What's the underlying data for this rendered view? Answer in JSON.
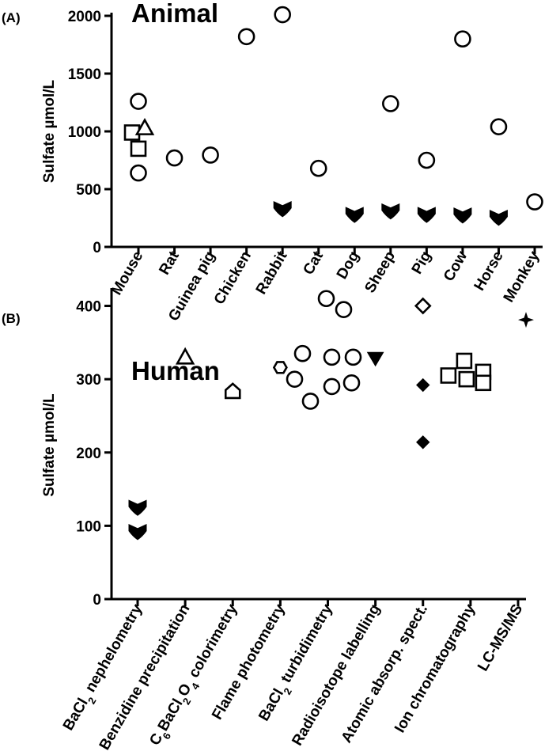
{
  "chart_data": [
    {
      "panel": "(A)",
      "type": "scatter",
      "title": "Animal",
      "ylabel": "Sulfate µmol/L",
      "ylim": [
        0,
        2000
      ],
      "yticks": [
        0,
        500,
        1000,
        1500,
        2000
      ],
      "categories": [
        "Mouse",
        "Rat",
        "Guinea pig",
        "Chicken",
        "Rabbit",
        "Cat",
        "Dog",
        "Sheep",
        "Pig",
        "Cow",
        "Horse",
        "Monkey"
      ],
      "points": [
        {
          "cat": 0,
          "dx": 0,
          "y": 1260,
          "marker": "circle"
        },
        {
          "cat": 0,
          "dx": 0,
          "y": 640,
          "marker": "circle"
        },
        {
          "cat": 0,
          "dx": -8,
          "y": 990,
          "marker": "square"
        },
        {
          "cat": 0,
          "dx": 0,
          "y": 850,
          "marker": "square"
        },
        {
          "cat": 0,
          "dx": 8,
          "y": 1030,
          "marker": "triangle"
        },
        {
          "cat": 1,
          "dx": 0,
          "y": 770,
          "marker": "circle"
        },
        {
          "cat": 2,
          "dx": 0,
          "y": 795,
          "marker": "circle"
        },
        {
          "cat": 3,
          "dx": 0,
          "y": 1820,
          "marker": "circle"
        },
        {
          "cat": 4,
          "dx": 0,
          "y": 2010,
          "marker": "circle"
        },
        {
          "cat": 4,
          "dx": 0,
          "y": 330,
          "marker": "heart"
        },
        {
          "cat": 5,
          "dx": 0,
          "y": 680,
          "marker": "circle"
        },
        {
          "cat": 6,
          "dx": 0,
          "y": 280,
          "marker": "heart"
        },
        {
          "cat": 7,
          "dx": 0,
          "y": 1240,
          "marker": "circle"
        },
        {
          "cat": 7,
          "dx": 0,
          "y": 310,
          "marker": "heart"
        },
        {
          "cat": 8,
          "dx": 0,
          "y": 750,
          "marker": "circle"
        },
        {
          "cat": 8,
          "dx": 0,
          "y": 280,
          "marker": "heart"
        },
        {
          "cat": 9,
          "dx": 0,
          "y": 1800,
          "marker": "circle"
        },
        {
          "cat": 9,
          "dx": 0,
          "y": 275,
          "marker": "heart"
        },
        {
          "cat": 10,
          "dx": 0,
          "y": 1040,
          "marker": "circle"
        },
        {
          "cat": 10,
          "dx": 0,
          "y": 255,
          "marker": "heart"
        },
        {
          "cat": 11,
          "dx": 0,
          "y": 390,
          "marker": "circle"
        }
      ]
    },
    {
      "panel": "(B)",
      "type": "scatter",
      "title": "Human",
      "ylabel": "Sulfate µmol/L",
      "ylim": [
        0,
        420
      ],
      "yticks": [
        0,
        100,
        200,
        300,
        400
      ],
      "categories": [
        {
          "main": "BaCl",
          "sub": "2",
          "rest": " nephelometry"
        },
        {
          "main": "Benzidine precipitation"
        },
        {
          "pre": "C",
          "presub": "6",
          "main": "BaCl",
          "sub": "2",
          "main2": "O",
          "sub2": "4",
          "rest": " colorimetry"
        },
        {
          "main": "Flame photometry"
        },
        {
          "main": "BaCl",
          "sub": "2",
          "rest": " turbidimetry"
        },
        {
          "main": "Radioisotope labelling"
        },
        {
          "main": "Atomic absorp. spect."
        },
        {
          "main": "Ion chromatography"
        },
        {
          "main": "LC-MS/MS"
        }
      ],
      "points": [
        {
          "cat": 0,
          "dx": 0,
          "y": 125,
          "marker": "heart"
        },
        {
          "cat": 0,
          "dx": 0,
          "y": 92,
          "marker": "heart"
        },
        {
          "cat": 1,
          "dx": 0,
          "y": 330,
          "marker": "triangle"
        },
        {
          "cat": 2,
          "dx": 0,
          "y": 283,
          "marker": "pentagon"
        },
        {
          "cat": 3,
          "dx": 0,
          "y": 316,
          "marker": "hexagon"
        },
        {
          "cat": 4,
          "dx": -2,
          "y": 410,
          "marker": "circle"
        },
        {
          "cat": 4,
          "dx": 20,
          "y": 395,
          "marker": "circle"
        },
        {
          "cat": 4,
          "dx": -32,
          "y": 335,
          "marker": "circle"
        },
        {
          "cat": 4,
          "dx": 5,
          "y": 330,
          "marker": "circle"
        },
        {
          "cat": 4,
          "dx": 32,
          "y": 330,
          "marker": "circle"
        },
        {
          "cat": 4,
          "dx": -42,
          "y": 300,
          "marker": "circle"
        },
        {
          "cat": 4,
          "dx": 5,
          "y": 290,
          "marker": "circle"
        },
        {
          "cat": 4,
          "dx": 30,
          "y": 295,
          "marker": "circle"
        },
        {
          "cat": 4,
          "dx": -22,
          "y": 270,
          "marker": "circle"
        },
        {
          "cat": 5,
          "dx": 0,
          "y": 328,
          "marker": "triangle-down"
        },
        {
          "cat": 6,
          "dx": 0,
          "y": 400,
          "marker": "diamond-open"
        },
        {
          "cat": 6,
          "dx": 0,
          "y": 292,
          "marker": "diamond"
        },
        {
          "cat": 6,
          "dx": 0,
          "y": 214,
          "marker": "diamond"
        },
        {
          "cat": 7,
          "dx": -28,
          "y": 305,
          "marker": "square"
        },
        {
          "cat": 7,
          "dx": -8,
          "y": 325,
          "marker": "square"
        },
        {
          "cat": 7,
          "dx": -5,
          "y": 300,
          "marker": "square"
        },
        {
          "cat": 7,
          "dx": 16,
          "y": 310,
          "marker": "square"
        },
        {
          "cat": 7,
          "dx": 16,
          "y": 295,
          "marker": "square"
        },
        {
          "cat": 8,
          "dx": 10,
          "y": 381,
          "marker": "star4"
        }
      ]
    }
  ]
}
